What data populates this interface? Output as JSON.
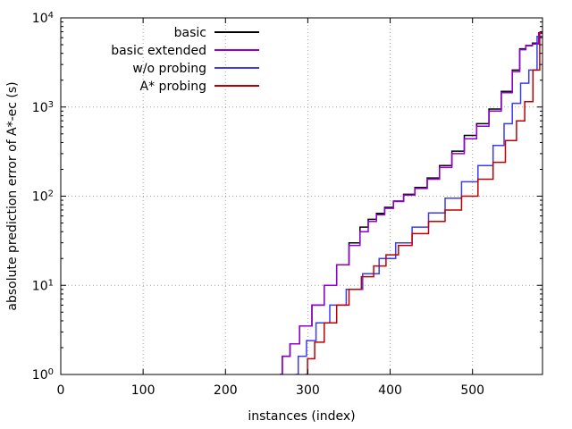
{
  "chart_data": {
    "type": "line",
    "title": "",
    "xlabel": "instances (index)",
    "ylabel": "absolute prediction error of A*-ec (s)",
    "xlim": [
      0,
      585
    ],
    "ylim": [
      1,
      10000
    ],
    "yscale": "log",
    "grid": true,
    "legend_position": "top-left inside",
    "xticks": [
      {
        "value": 0,
        "label": "0"
      },
      {
        "value": 100,
        "label": "100"
      },
      {
        "value": 200,
        "label": "200"
      },
      {
        "value": 300,
        "label": "300"
      },
      {
        "value": 400,
        "label": "400"
      },
      {
        "value": 500,
        "label": "500"
      }
    ],
    "yticks": [
      {
        "value": 1,
        "base": "10",
        "exp": "0"
      },
      {
        "value": 10,
        "base": "10",
        "exp": "1"
      },
      {
        "value": 100,
        "base": "10",
        "exp": "2"
      },
      {
        "value": 1000,
        "base": "10",
        "exp": "3"
      },
      {
        "value": 10000,
        "base": "10",
        "exp": "4"
      }
    ],
    "series": [
      {
        "name": "basic",
        "color": "#000000",
        "points": [
          [
            266,
            1.0
          ],
          [
            275,
            1.6
          ],
          [
            285,
            2.2
          ],
          [
            300,
            3.5
          ],
          [
            315,
            6
          ],
          [
            330,
            10
          ],
          [
            345,
            17
          ],
          [
            360,
            30
          ],
          [
            370,
            45
          ],
          [
            380,
            55
          ],
          [
            390,
            64
          ],
          [
            400,
            75
          ],
          [
            412,
            88
          ],
          [
            425,
            105
          ],
          [
            440,
            125
          ],
          [
            455,
            160
          ],
          [
            470,
            220
          ],
          [
            485,
            320
          ],
          [
            500,
            480
          ],
          [
            515,
            650
          ],
          [
            530,
            950
          ],
          [
            545,
            1500
          ],
          [
            555,
            2600
          ],
          [
            562,
            4500
          ],
          [
            570,
            4900
          ],
          [
            578,
            5200
          ],
          [
            585,
            6800
          ]
        ]
      },
      {
        "name": "basic extended",
        "color": "#9400d3",
        "points": [
          [
            266,
            1.0
          ],
          [
            275,
            1.6
          ],
          [
            285,
            2.2
          ],
          [
            300,
            3.5
          ],
          [
            315,
            6
          ],
          [
            330,
            10
          ],
          [
            345,
            17
          ],
          [
            360,
            28
          ],
          [
            370,
            40
          ],
          [
            380,
            52
          ],
          [
            390,
            62
          ],
          [
            400,
            73
          ],
          [
            412,
            87
          ],
          [
            425,
            103
          ],
          [
            440,
            122
          ],
          [
            455,
            155
          ],
          [
            470,
            210
          ],
          [
            485,
            300
          ],
          [
            500,
            440
          ],
          [
            515,
            610
          ],
          [
            530,
            900
          ],
          [
            545,
            1450
          ],
          [
            555,
            2500
          ],
          [
            562,
            4400
          ],
          [
            570,
            4850
          ],
          [
            578,
            5100
          ],
          [
            585,
            6700
          ]
        ]
      },
      {
        "name": "w/o probing",
        "color": "#3b3bf0",
        "points": [
          [
            285,
            1.0
          ],
          [
            295,
            1.6
          ],
          [
            305,
            2.4
          ],
          [
            320,
            3.8
          ],
          [
            340,
            6
          ],
          [
            360,
            9
          ],
          [
            380,
            13.5
          ],
          [
            400,
            20
          ],
          [
            420,
            30
          ],
          [
            440,
            45
          ],
          [
            460,
            65
          ],
          [
            480,
            95
          ],
          [
            500,
            145
          ],
          [
            520,
            220
          ],
          [
            535,
            370
          ],
          [
            545,
            650
          ],
          [
            555,
            1100
          ],
          [
            565,
            1850
          ],
          [
            575,
            2600
          ],
          [
            585,
            6200
          ]
        ]
      },
      {
        "name": "A* probing",
        "color": "#c00000",
        "points": [
          [
            297,
            1.0
          ],
          [
            305,
            1.5
          ],
          [
            315,
            2.3
          ],
          [
            330,
            3.8
          ],
          [
            345,
            6
          ],
          [
            360,
            9
          ],
          [
            375,
            12.5
          ],
          [
            390,
            16.5
          ],
          [
            405,
            22
          ],
          [
            420,
            28
          ],
          [
            440,
            38
          ],
          [
            460,
            52
          ],
          [
            480,
            70
          ],
          [
            500,
            100
          ],
          [
            520,
            155
          ],
          [
            535,
            240
          ],
          [
            550,
            420
          ],
          [
            560,
            700
          ],
          [
            570,
            1150
          ],
          [
            580,
            2600
          ],
          [
            585,
            6900
          ]
        ]
      }
    ]
  }
}
